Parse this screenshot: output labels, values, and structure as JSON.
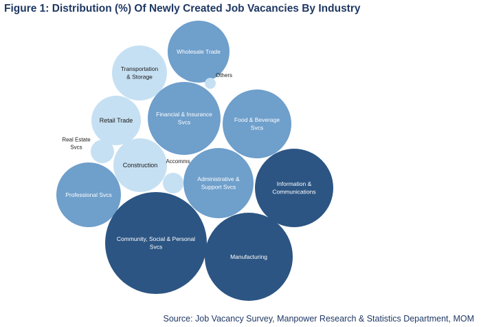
{
  "figure_title": "Figure 1: Distribution (%) Of Newly Created Job Vacancies By Industry",
  "source_note": "Source: Job Vacancy Survey, Manpower Research & Statistics Department, MOM",
  "colors": {
    "light": "#c6e0f3",
    "medium": "#6f9fcb",
    "dark": "#2c5583",
    "label_on_light": "#1a1a1a",
    "label_on_color": "#ffffff"
  },
  "chart_data": {
    "type": "packed-bubble",
    "title": "Figure 1: Distribution (%) Of Newly Created Job Vacancies By Industry",
    "note": "Bubble area is proportional to share of newly created job vacancies; no numeric values are printed.",
    "series": [
      {
        "name": "Wholesale Trade",
        "label_lines": [
          "Wholesale Trade"
        ],
        "tone": "medium",
        "label_outside": false
      },
      {
        "name": "Transportation & Storage",
        "label_lines": [
          "Transportation",
          "& Storage"
        ],
        "tone": "light",
        "label_outside": false
      },
      {
        "name": "Others",
        "label_lines": [
          "Others"
        ],
        "tone": "light",
        "label_outside": true
      },
      {
        "name": "Retail Trade",
        "label_lines": [
          "Retail Trade"
        ],
        "tone": "light",
        "label_outside": false
      },
      {
        "name": "Financial & Insurance Svcs",
        "label_lines": [
          "Financial & Insurance",
          "Svcs"
        ],
        "tone": "medium",
        "label_outside": false
      },
      {
        "name": "Food & Beverage Svcs",
        "label_lines": [
          "Food & Beverage",
          "Svcs"
        ],
        "tone": "medium",
        "label_outside": false
      },
      {
        "name": "Real Estate Svcs",
        "label_lines": [
          "Real Estate",
          "Svcs"
        ],
        "tone": "light",
        "label_outside": true
      },
      {
        "name": "Construction",
        "label_lines": [
          "Construction"
        ],
        "tone": "light",
        "label_outside": false
      },
      {
        "name": "Accomms",
        "label_lines": [
          "Accomms"
        ],
        "tone": "light",
        "label_outside": true
      },
      {
        "name": "Administrative & Support Svcs",
        "label_lines": [
          "Administrative &",
          "Support Svcs"
        ],
        "tone": "medium",
        "label_outside": false
      },
      {
        "name": "Information & Communications",
        "label_lines": [
          "Information &",
          "Communications"
        ],
        "tone": "dark",
        "label_outside": false
      },
      {
        "name": "Professional Svcs",
        "label_lines": [
          "Professional Svcs"
        ],
        "tone": "medium",
        "label_outside": false
      },
      {
        "name": "Community, Social & Personal Svcs",
        "label_lines": [
          "Community, Social & Personal",
          "Svcs"
        ],
        "tone": "dark",
        "label_outside": false
      },
      {
        "name": "Manufacturing",
        "label_lines": [
          "Manufacturing"
        ],
        "tone": "dark",
        "label_outside": false
      }
    ]
  }
}
